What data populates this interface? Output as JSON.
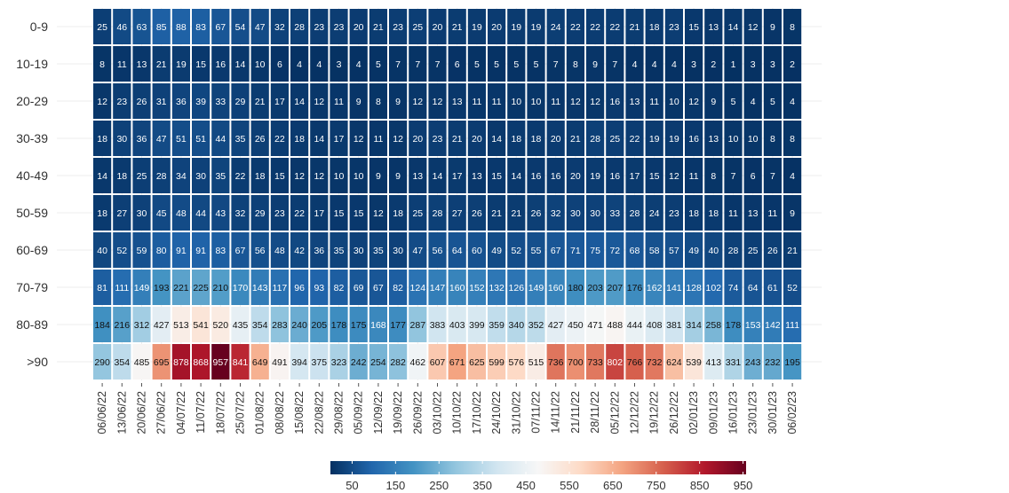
{
  "chart_data": {
    "type": "heatmap",
    "title": "",
    "xlabel": "",
    "ylabel": "",
    "rows": [
      "0-9",
      "10-19",
      "20-29",
      "30-39",
      "40-49",
      "50-59",
      "60-69",
      "70-79",
      "80-89",
      ">90"
    ],
    "columns": [
      "06/06/22",
      "13/06/22",
      "20/06/22",
      "27/06/22",
      "04/07/22",
      "11/07/22",
      "18/07/22",
      "25/07/22",
      "01/08/22",
      "08/08/22",
      "15/08/22",
      "22/08/22",
      "29/08/22",
      "05/09/22",
      "12/09/22",
      "19/09/22",
      "26/09/22",
      "03/10/22",
      "10/10/22",
      "17/10/22",
      "24/10/22",
      "31/10/22",
      "07/11/22",
      "14/11/22",
      "21/11/22",
      "28/11/22",
      "05/12/22",
      "12/12/22",
      "19/12/22",
      "26/12/22",
      "02/01/23",
      "09/01/23",
      "16/01/23",
      "23/01/23",
      "30/01/23",
      "06/02/23"
    ],
    "values": [
      [
        25,
        46,
        63,
        85,
        88,
        83,
        67,
        54,
        47,
        32,
        28,
        23,
        23,
        20,
        21,
        23,
        25,
        20,
        21,
        19,
        20,
        19,
        19,
        24,
        22,
        22,
        22,
        21,
        18,
        23,
        15,
        13,
        14,
        12,
        9,
        8
      ],
      [
        8,
        11,
        13,
        21,
        19,
        15,
        16,
        14,
        10,
        6,
        4,
        4,
        3,
        4,
        5,
        7,
        7,
        7,
        6,
        5,
        5,
        5,
        5,
        7,
        8,
        9,
        7,
        4,
        4,
        4,
        3,
        2,
        1,
        3,
        3,
        2
      ],
      [
        12,
        23,
        26,
        31,
        36,
        39,
        33,
        29,
        21,
        17,
        14,
        12,
        11,
        9,
        8,
        9,
        12,
        12,
        13,
        11,
        11,
        10,
        10,
        11,
        12,
        12,
        16,
        13,
        11,
        10,
        12,
        9,
        5,
        4,
        5,
        4
      ],
      [
        18,
        30,
        36,
        47,
        51,
        51,
        44,
        35,
        26,
        22,
        18,
        14,
        17,
        12,
        11,
        12,
        20,
        23,
        21,
        20,
        14,
        18,
        18,
        20,
        21,
        28,
        25,
        22,
        19,
        19,
        16,
        13,
        10,
        10,
        8,
        8
      ],
      [
        14,
        18,
        25,
        28,
        34,
        30,
        35,
        22,
        18,
        15,
        12,
        12,
        10,
        10,
        9,
        9,
        13,
        14,
        17,
        13,
        15,
        14,
        16,
        16,
        20,
        19,
        16,
        17,
        15,
        12,
        11,
        8,
        7,
        6,
        7,
        4
      ],
      [
        18,
        27,
        30,
        45,
        48,
        44,
        43,
        32,
        29,
        23,
        22,
        17,
        15,
        15,
        12,
        18,
        25,
        28,
        27,
        26,
        21,
        21,
        26,
        32,
        30,
        30,
        33,
        28,
        24,
        23,
        18,
        18,
        11,
        13,
        11,
        9
      ],
      [
        40,
        52,
        59,
        80,
        91,
        91,
        83,
        67,
        56,
        48,
        42,
        36,
        35,
        30,
        35,
        30,
        47,
        56,
        64,
        60,
        49,
        52,
        55,
        67,
        71,
        75,
        72,
        68,
        58,
        57,
        49,
        40,
        28,
        25,
        26,
        21
      ],
      [
        81,
        111,
        149,
        193,
        221,
        225,
        210,
        170,
        143,
        117,
        96,
        93,
        82,
        69,
        67,
        82,
        124,
        147,
        160,
        152,
        132,
        126,
        149,
        160,
        180,
        203,
        207,
        176,
        162,
        141,
        128,
        102,
        74,
        64,
        61,
        52
      ],
      [
        184,
        216,
        312,
        427,
        513,
        541,
        520,
        435,
        354,
        283,
        240,
        205,
        178,
        175,
        168,
        177,
        287,
        383,
        403,
        399,
        359,
        340,
        352,
        427,
        450,
        471,
        488,
        444,
        408,
        381,
        314,
        258,
        178,
        153,
        142,
        111
      ],
      [
        290,
        354,
        485,
        695,
        878,
        868,
        957,
        841,
        649,
        491,
        394,
        375,
        323,
        242,
        254,
        282,
        462,
        607,
        671,
        625,
        599,
        576,
        515,
        736,
        700,
        733,
        802,
        766,
        732,
        624,
        539,
        413,
        331,
        243,
        232,
        195
      ]
    ],
    "colorscale": [
      "#053061",
      "#2166ac",
      "#4393c3",
      "#92c5de",
      "#d1e5f0",
      "#f7f7f7",
      "#fddbc7",
      "#f4a582",
      "#d6604d",
      "#b2182b",
      "#67001f"
    ],
    "color_range": [
      0,
      957
    ],
    "legend": {
      "type": "colorbar",
      "placement": "bottom",
      "ticks": [
        50,
        150,
        250,
        350,
        450,
        550,
        650,
        750,
        850,
        950
      ]
    },
    "grid": true
  }
}
